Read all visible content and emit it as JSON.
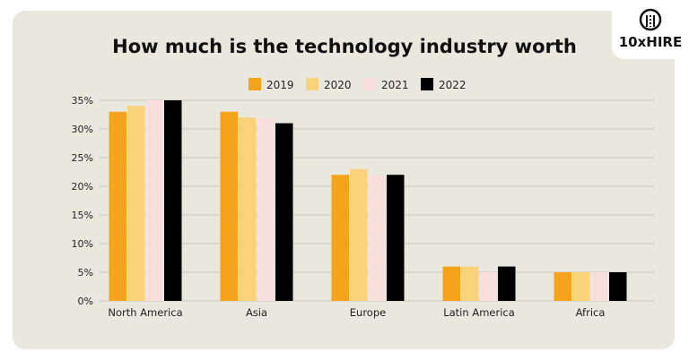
{
  "logo": {
    "text": "10xHIRE"
  },
  "chart_data": {
    "type": "bar",
    "title": "How much is the technology industry worth",
    "categories": [
      "North America",
      "Asia",
      "Europe",
      "Latin America",
      "Africa"
    ],
    "series": [
      {
        "name": "2019",
        "color": "#f5a31a",
        "values": [
          33,
          33,
          22,
          6,
          5
        ]
      },
      {
        "name": "2020",
        "color": "#fad27a",
        "values": [
          34,
          32,
          23,
          6,
          5
        ]
      },
      {
        "name": "2021",
        "color": "#f8dfdc",
        "values": [
          35,
          32,
          22,
          5,
          5
        ]
      },
      {
        "name": "2022",
        "color": "#000000",
        "values": [
          35,
          31,
          22,
          6,
          5
        ]
      }
    ],
    "yticks": [
      "0%",
      "5%",
      "10%",
      "15%",
      "20%",
      "25%",
      "30%",
      "35%"
    ],
    "ylim": [
      0,
      35
    ],
    "grid": true,
    "legend": "top"
  }
}
